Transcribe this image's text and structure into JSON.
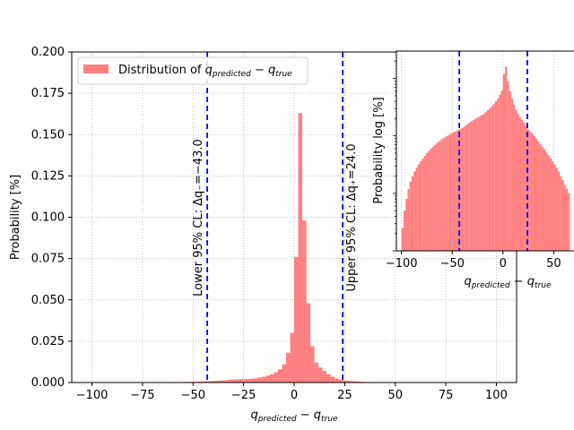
{
  "chart_data": [
    {
      "type": "bar",
      "panel": "main",
      "xlabel": "q_{predicted} − q_{true}",
      "ylabel": "Probability [%]",
      "xlim": [
        -110,
        110
      ],
      "ylim": [
        0,
        0.2
      ],
      "xticks": [
        -100,
        -75,
        -50,
        -25,
        0,
        25,
        50,
        75,
        100
      ],
      "yticks": [
        0.0,
        0.025,
        0.05,
        0.075,
        0.1,
        0.125,
        0.15,
        0.175,
        0.2
      ],
      "ytick_labels": [
        "0.000",
        "0.025",
        "0.050",
        "0.075",
        "0.100",
        "0.125",
        "0.150",
        "0.175",
        "0.200"
      ],
      "grid": true,
      "legend_position": "upper-left",
      "series": [
        {
          "name": "Distribution of q_{predicted} − q_{true}",
          "color": "#ff8080",
          "bin_width": 2,
          "bin_start": -100,
          "values": [
            0,
            0,
            0,
            0,
            0,
            0,
            0,
            0,
            0,
            0,
            0,
            0,
            0,
            0,
            0,
            0,
            0.0002,
            0.0002,
            0.0002,
            0.0002,
            0.0003,
            0.0003,
            0.0003,
            0.0004,
            0.0004,
            0.0005,
            0.0006,
            0.0007,
            0.0008,
            0.0009,
            0.001,
            0.0011,
            0.0013,
            0.0015,
            0.0017,
            0.0019,
            0.002,
            0.0021,
            0.0022,
            0.0023,
            0.0025,
            0.003,
            0.0035,
            0.0042,
            0.005,
            0.0062,
            0.008,
            0.011,
            0.018,
            0.03,
            0.076,
            0.163,
            0.098,
            0.048,
            0.022,
            0.012,
            0.009,
            0.007,
            0.005,
            0.0035,
            0.0025,
            0.0018,
            0.0013,
            0.001,
            0.0008,
            0.0006,
            0.0005,
            0.0004,
            0.0003,
            0.0003,
            0.0002,
            0.0002,
            0.0001,
            0.0001,
            0.0001,
            0.0001,
            0.0001,
            0.0001,
            0,
            0,
            0,
            0,
            0,
            0,
            0,
            0,
            0,
            0,
            0,
            0,
            0,
            0,
            0,
            0,
            0,
            0,
            0,
            0,
            0,
            0
          ]
        }
      ],
      "vlines": [
        {
          "x": -43.0,
          "color": "#0000ff",
          "label": "Lower 95% CL: Δq₋=−43.0"
        },
        {
          "x": 24.0,
          "color": "#0000ff",
          "label": "Upper 95% CL: Δq₊=24.0"
        }
      ]
    },
    {
      "type": "bar",
      "panel": "inset",
      "xlabel": "q_{predicted} − q_{true}",
      "ylabel": "Probability log [%]",
      "yscale": "log",
      "xlim": [
        -105,
        70
      ],
      "ylim": [
        0.0001,
        0.3
      ],
      "xticks": [
        -100,
        -50,
        0,
        50
      ],
      "grid": true,
      "series": [
        {
          "color": "#ff8080",
          "bin_width": 2,
          "bin_start": -100,
          "values": [
            0.00025,
            0.0005,
            0.0008,
            0.0012,
            0.0016,
            0.002,
            0.0024,
            0.0028,
            0.0032,
            0.0036,
            0.004,
            0.0045,
            0.005,
            0.0055,
            0.006,
            0.0065,
            0.007,
            0.0075,
            0.008,
            0.0085,
            0.009,
            0.0095,
            0.01,
            0.0105,
            0.011,
            0.0115,
            0.012,
            0.0125,
            0.013,
            0.0135,
            0.014,
            0.015,
            0.016,
            0.017,
            0.018,
            0.019,
            0.02,
            0.021,
            0.022,
            0.023,
            0.024,
            0.026,
            0.028,
            0.03,
            0.033,
            0.036,
            0.04,
            0.045,
            0.052,
            0.062,
            0.12,
            0.16,
            0.09,
            0.06,
            0.045,
            0.035,
            0.028,
            0.024,
            0.021,
            0.019,
            0.017,
            0.015,
            0.013,
            0.012,
            0.011,
            0.01,
            0.009,
            0.008,
            0.0072,
            0.0065,
            0.0058,
            0.0052,
            0.0046,
            0.0041,
            0.0036,
            0.0032,
            0.0028,
            0.0024,
            0.002,
            0.0017,
            0.0014,
            0.0012,
            0.001
          ]
        }
      ],
      "vlines": [
        {
          "x": -43.0,
          "color": "#0000ff"
        },
        {
          "x": 24.0,
          "color": "#0000ff"
        }
      ]
    }
  ]
}
